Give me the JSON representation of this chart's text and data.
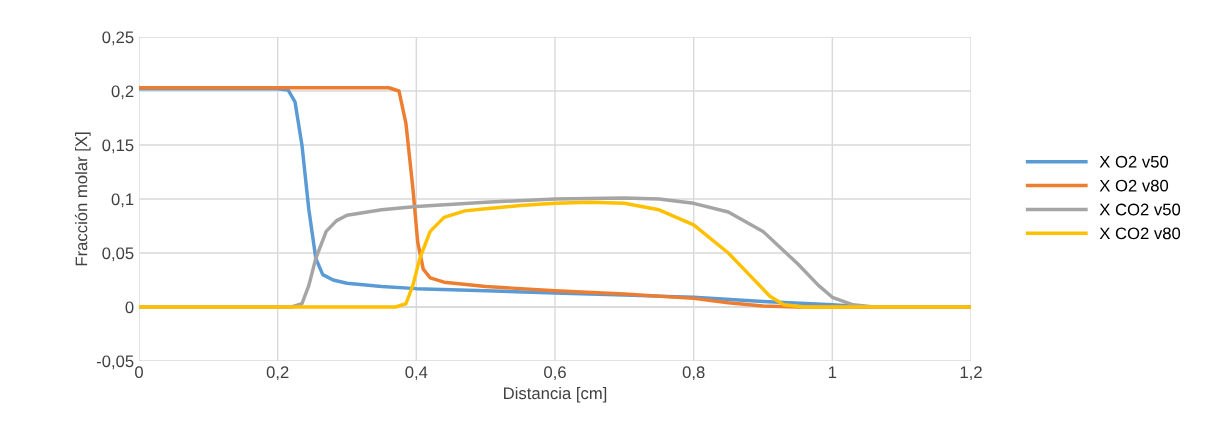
{
  "chart_data": {
    "type": "line",
    "xlabel": "Distancia [cm]",
    "ylabel": "Fracción molar [X]",
    "xlim": [
      0,
      1.2
    ],
    "xticks": [
      {
        "value": 0,
        "label": "0"
      },
      {
        "value": 0.2,
        "label": "0,2"
      },
      {
        "value": 0.4,
        "label": "0,4"
      },
      {
        "value": 0.6,
        "label": "0,6"
      },
      {
        "value": 0.8,
        "label": "0,8"
      },
      {
        "value": 1,
        "label": "1"
      },
      {
        "value": 1.2,
        "label": "1,2"
      }
    ],
    "ylim": [
      -0.05,
      0.25
    ],
    "yticks": [
      {
        "value": -0.05,
        "label": "-0,05"
      },
      {
        "value": 0,
        "label": "0"
      },
      {
        "value": 0.05,
        "label": "0,05"
      },
      {
        "value": 0.1,
        "label": "0,1"
      },
      {
        "value": 0.15,
        "label": "0,15"
      },
      {
        "value": 0.2,
        "label": "0,2"
      },
      {
        "value": 0.25,
        "label": "0,25"
      }
    ],
    "grid": true,
    "legend": "right",
    "marker": "none",
    "line_style": "solid",
    "series": [
      {
        "name": "X O2 v50",
        "color": "#5b9bd5",
        "x": [
          0,
          0.2,
          0.215,
          0.225,
          0.235,
          0.245,
          0.255,
          0.265,
          0.28,
          0.3,
          0.35,
          0.4,
          0.5,
          0.6,
          0.7,
          0.8,
          0.9,
          1.0,
          1.05,
          1.2
        ],
        "values": [
          0.202,
          0.202,
          0.201,
          0.19,
          0.15,
          0.09,
          0.045,
          0.03,
          0.025,
          0.022,
          0.019,
          0.017,
          0.015,
          0.013,
          0.011,
          0.009,
          0.005,
          0.002,
          0,
          0
        ]
      },
      {
        "name": "X O2 v80",
        "color": "#ed7d31",
        "x": [
          0,
          0.36,
          0.375,
          0.385,
          0.395,
          0.402,
          0.41,
          0.42,
          0.44,
          0.5,
          0.6,
          0.7,
          0.8,
          0.85,
          0.9,
          0.95,
          1.2
        ],
        "values": [
          0.203,
          0.203,
          0.2,
          0.17,
          0.11,
          0.06,
          0.035,
          0.027,
          0.023,
          0.019,
          0.015,
          0.012,
          0.008,
          0.004,
          0.001,
          0,
          0
        ]
      },
      {
        "name": "X CO2 v50",
        "color": "#a5a5a5",
        "x": [
          0,
          0.22,
          0.235,
          0.245,
          0.255,
          0.27,
          0.285,
          0.3,
          0.35,
          0.4,
          0.5,
          0.6,
          0.7,
          0.75,
          0.8,
          0.85,
          0.9,
          0.95,
          0.98,
          1.0,
          1.03,
          1.06,
          1.2
        ],
        "values": [
          0,
          0,
          0.003,
          0.02,
          0.045,
          0.07,
          0.08,
          0.085,
          0.09,
          0.093,
          0.097,
          0.1,
          0.101,
          0.1,
          0.096,
          0.088,
          0.07,
          0.04,
          0.02,
          0.009,
          0.002,
          0,
          0
        ]
      },
      {
        "name": "X CO2 v80",
        "color": "#ffc000",
        "x": [
          0,
          0.37,
          0.385,
          0.395,
          0.405,
          0.42,
          0.44,
          0.47,
          0.5,
          0.55,
          0.6,
          0.65,
          0.7,
          0.75,
          0.8,
          0.85,
          0.88,
          0.91,
          0.93,
          0.96,
          1.2
        ],
        "values": [
          0,
          0,
          0.003,
          0.02,
          0.045,
          0.07,
          0.083,
          0.089,
          0.091,
          0.094,
          0.096,
          0.097,
          0.096,
          0.09,
          0.076,
          0.05,
          0.03,
          0.01,
          0.002,
          0,
          0
        ]
      }
    ]
  }
}
